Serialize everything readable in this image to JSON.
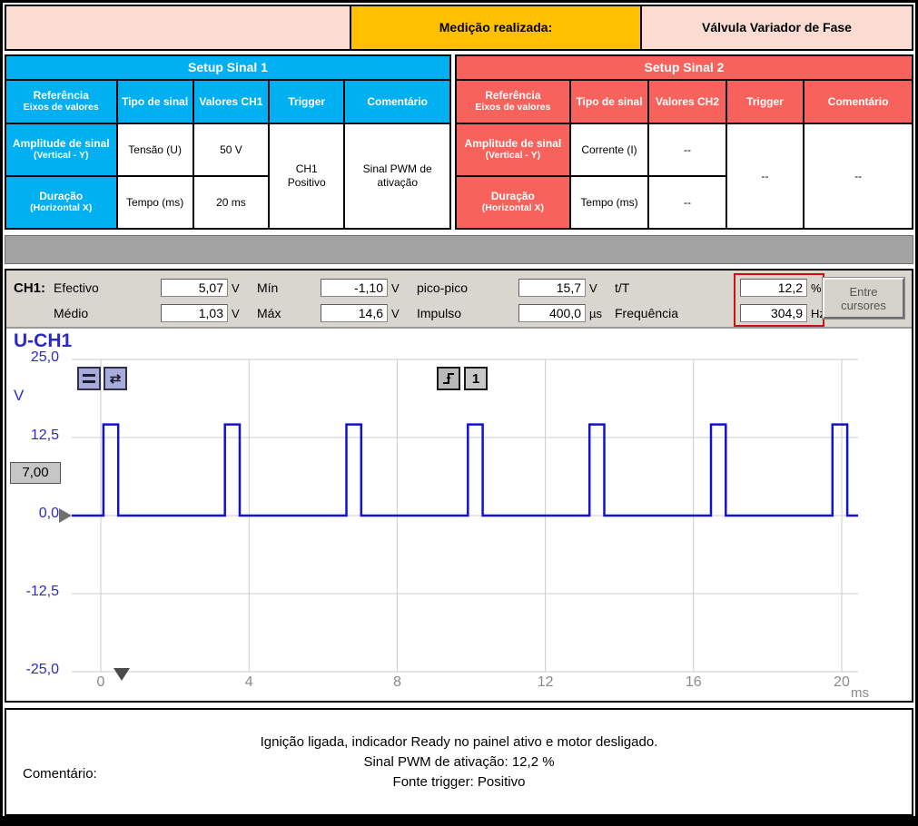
{
  "colors": {
    "header_pink": "#fbdcd2",
    "header_orange": "#ffc000",
    "setup1_blue": "#00b0f0",
    "setup2_red": "#f8625c",
    "separator_gray": "#a3a3a3",
    "strip_bg": "#d8d6cf",
    "signal_blue": "#1212cc",
    "axis_blue": "#2a2ac8",
    "highlight_red": "#cc1111"
  },
  "header": {
    "measurement_label": "Medição realizada:",
    "measurement_value": "Válvula Variador de Fase"
  },
  "setup1": {
    "title": "Setup Sinal 1",
    "headers": {
      "ref1": "Referência",
      "ref2": "Eixos de valores",
      "tipo": "Tipo de sinal",
      "valores": "Valores CH1",
      "trigger": "Trigger",
      "comentario": "Comentário"
    },
    "amplitude": {
      "label1": "Amplitude de sinal",
      "label2": "(Vertical - Y)",
      "tipo": "Tensão (U)",
      "valor": "50 V"
    },
    "duracao": {
      "label1": "Duração",
      "label2": "(Horizontal X)",
      "tipo": "Tempo (ms)",
      "valor": "20 ms"
    },
    "trigger_value": "CH1 Positivo",
    "comentario_value": "Sinal PWM de ativação"
  },
  "setup2": {
    "title": "Setup Sinal 2",
    "headers": {
      "ref1": "Referência",
      "ref2": "Eixos de valores",
      "tipo": "Tipo de sinal",
      "valores": "Valores CH2",
      "trigger": "Trigger",
      "comentario": "Comentário"
    },
    "amplitude": {
      "label1": "Amplitude de sinal",
      "label2": "(Vertical - Y)",
      "tipo": "Corrente (I)",
      "valor": "--"
    },
    "duracao": {
      "label1": "Duração",
      "label2": "(Horizontal X)",
      "tipo": "Tempo (ms)",
      "valor": "--"
    },
    "trigger_value": "--",
    "comentario_value": "--"
  },
  "scope": {
    "channel": "CH1:",
    "fields": [
      {
        "label": "Efectivo",
        "value": "5,07",
        "unit": "V"
      },
      {
        "label": "Médio",
        "value": "1,03",
        "unit": "V"
      },
      {
        "label": "Mín",
        "value": "-1,10",
        "unit": "V"
      },
      {
        "label": "Máx",
        "value": "14,6",
        "unit": "V"
      },
      {
        "label": "pico-pico",
        "value": "15,7",
        "unit": "V"
      },
      {
        "label": "Impulso",
        "value": "400,0",
        "unit": "µs"
      },
      {
        "label": "t/T",
        "value": "12,2",
        "unit": "%"
      },
      {
        "label": "Frequência",
        "value": "304,9",
        "unit": "Hz"
      }
    ],
    "button": "Entre cursores",
    "trigger_level": "7,00",
    "trigger_source": "1",
    "icons": {
      "arrows": "⇄"
    }
  },
  "chart_data": {
    "type": "line",
    "title": "U-CH1",
    "xlabel": "ms",
    "ylabel": "V",
    "xlim": [
      -0.8,
      20.4
    ],
    "ylim": [
      -25,
      25
    ],
    "x_ticks": [
      0,
      4,
      8,
      12,
      16,
      20
    ],
    "y_ticks": [
      25,
      12.5,
      0,
      -12.5,
      -25
    ],
    "y_tick_labels": [
      "25,0",
      "12,5",
      "0,0",
      "-12,5",
      "-25,0"
    ],
    "grid": true,
    "legend": "none",
    "signal": {
      "shape": "pwm_pulse_train",
      "baseline_v": 0,
      "high_v": 14.6,
      "period_ms": 3.28,
      "pulse_width_ms": 0.4,
      "first_pulse_ms": 0.07,
      "num_pulses": 7,
      "frequency_hz": 304.9,
      "duty_cycle_pct": 12.2
    }
  },
  "comment": {
    "label": "Comentário:",
    "lines": [
      "Ignição ligada, indicador Ready no painel ativo e motor desligado.",
      "Sinal PWM de ativação: 12,2 %",
      "Fonte trigger: Positivo"
    ]
  }
}
